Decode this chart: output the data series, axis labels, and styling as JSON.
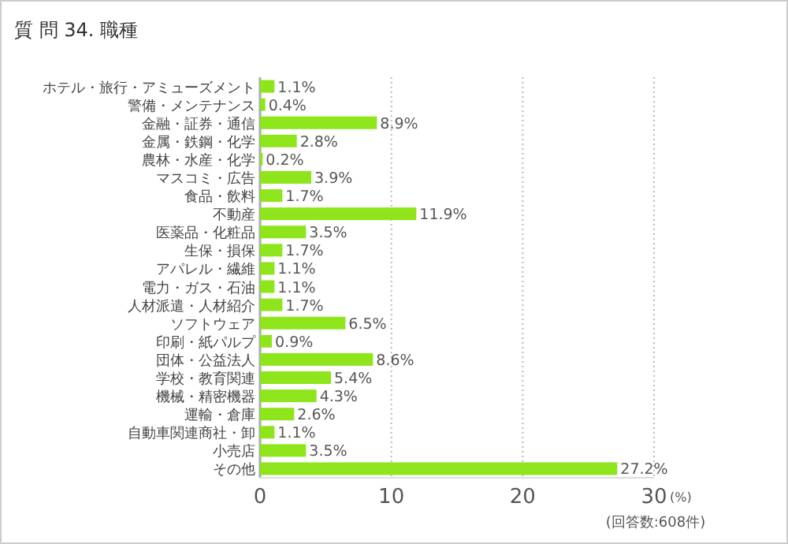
{
  "chart_data": {
    "type": "bar",
    "orientation": "horizontal",
    "title": "質 問 34. 職種",
    "xlabel": "(%)",
    "categories": [
      "ホテル・旅行・アミューズメント",
      "警備・メンテナンス",
      "金融・証券・通信",
      "金属・鉄鋼・化学",
      "農林・水産・化学",
      "マスコミ・広告",
      "食品・飲料",
      "不動産",
      "医薬品・化粧品",
      "生保・損保",
      "アパレル・繊維",
      "電力・ガス・石油",
      "人材派遣・人材紹介",
      "ソフトウェア",
      "印刷・紙パルプ",
      "団体・公益法人",
      "学校・教育関連",
      "機械・精密機器",
      "運輸・倉庫",
      "自動車関連商社・卸",
      "小売店",
      "その他"
    ],
    "values": [
      1.1,
      0.4,
      8.9,
      2.8,
      0.2,
      3.9,
      1.7,
      11.9,
      3.5,
      1.7,
      1.1,
      1.1,
      1.7,
      6.5,
      0.9,
      8.6,
      5.4,
      4.3,
      2.6,
      1.1,
      3.5,
      27.2
    ],
    "value_labels": [
      "1.1%",
      "0.4%",
      "8.9%",
      "2.8%",
      "0.2%",
      "3.9%",
      "1.7%",
      "11.9%",
      "3.5%",
      "1.7%",
      "1.1%",
      "1.1%",
      "1.7%",
      "6.5%",
      "0.9%",
      "8.6%",
      "5.4%",
      "4.3%",
      "2.6%",
      "1.1%",
      "3.5%",
      "27.2%"
    ],
    "color": "#8fe51c",
    "xlim": [
      0,
      30
    ],
    "xticks": [
      0,
      10,
      20,
      30
    ],
    "grid": "x",
    "annotations": [
      "(回答数:608件)"
    ]
  }
}
